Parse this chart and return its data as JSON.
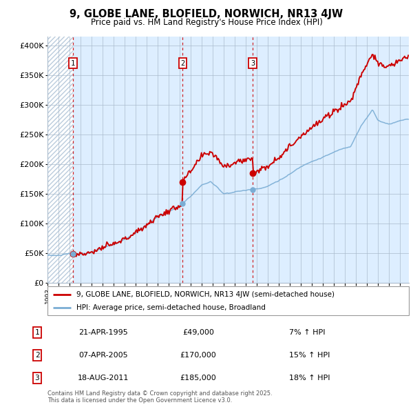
{
  "title": "9, GLOBE LANE, BLOFIELD, NORWICH, NR13 4JW",
  "subtitle": "Price paid vs. HM Land Registry's House Price Index (HPI)",
  "ylabel_ticks": [
    "£0",
    "£50K",
    "£100K",
    "£150K",
    "£200K",
    "£250K",
    "£300K",
    "£350K",
    "£400K"
  ],
  "ytick_values": [
    0,
    50000,
    100000,
    150000,
    200000,
    250000,
    300000,
    350000,
    400000
  ],
  "ylim": [
    0,
    415000
  ],
  "xlim_start": 1993.0,
  "xlim_end": 2025.8,
  "transactions": [
    {
      "num": 1,
      "date": "21-APR-1995",
      "price": 49000,
      "year": 1995.3,
      "hpi_pct": "7%",
      "arrow": "↑"
    },
    {
      "num": 2,
      "date": "07-APR-2005",
      "price": 170000,
      "year": 2005.27,
      "hpi_pct": "15%",
      "arrow": "↑"
    },
    {
      "num": 3,
      "date": "18-AUG-2011",
      "price": 185000,
      "year": 2011.63,
      "hpi_pct": "18%",
      "arrow": "↑"
    }
  ],
  "legend_property": "9, GLOBE LANE, BLOFIELD, NORWICH, NR13 4JW (semi-detached house)",
  "legend_hpi": "HPI: Average price, semi-detached house, Broadland",
  "footnote": "Contains HM Land Registry data © Crown copyright and database right 2025.\nThis data is licensed under the Open Government Licence v3.0.",
  "property_color": "#cc0000",
  "hpi_color": "#7aadd4",
  "vline_color": "#cc0000",
  "chart_bg": "#ddeeff",
  "hatch_bg": "#ffffff",
  "grid_color": "#aabbcc",
  "border_color": "#aabbcc"
}
